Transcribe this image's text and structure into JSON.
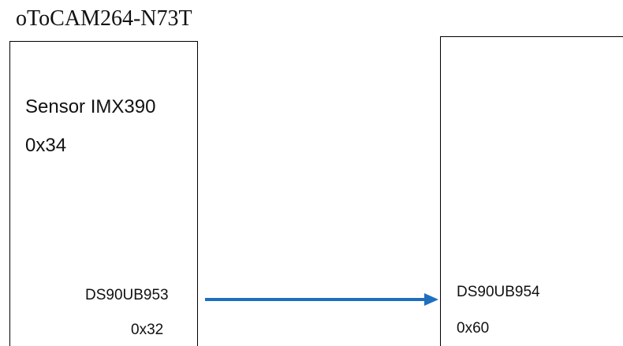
{
  "title": "oToCAM264-N73T",
  "camera_block": {
    "sensor_label": "Sensor IMX390",
    "sensor_address": "0x34",
    "serializer_label": "DS90UB953",
    "serializer_address": "0x32"
  },
  "host_block": {
    "deserializer_label": "DS90UB954",
    "deserializer_address": "0x60"
  },
  "colors": {
    "arrow": "#1f6fbf",
    "box_border": "#000000"
  }
}
